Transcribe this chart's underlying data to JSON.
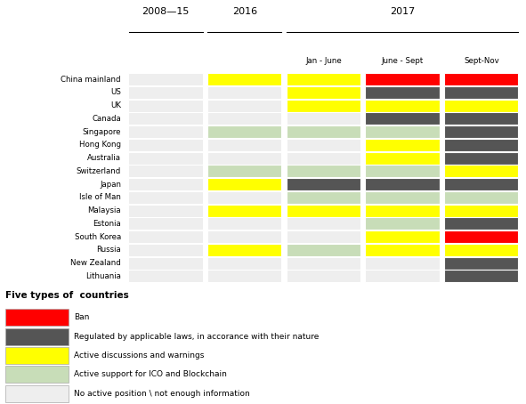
{
  "countries": [
    "China mainland",
    "US",
    "UK",
    "Canada",
    "Singapore",
    "Hong Kong",
    "Australia",
    "Switzerland",
    "Japan",
    "Isle of Man",
    "Malaysia",
    "Estonia",
    "South Korea",
    "Russia",
    "New Zealand",
    "Lithuania"
  ],
  "columns": [
    "2008-15",
    "2016",
    "Jan - June",
    "June - Sept",
    "Sept-Nov"
  ],
  "colors": {
    "none": "#eeeeee",
    "red": "#ff0000",
    "gray": "#555555",
    "yellow": "#ffff00",
    "green": "#c8ddb8"
  },
  "grid": [
    [
      "none",
      "yellow",
      "yellow",
      "red",
      "red"
    ],
    [
      "none",
      "none",
      "yellow",
      "gray",
      "gray"
    ],
    [
      "none",
      "none",
      "yellow",
      "yellow",
      "yellow"
    ],
    [
      "none",
      "none",
      "none",
      "gray",
      "gray"
    ],
    [
      "none",
      "green",
      "green",
      "green",
      "gray"
    ],
    [
      "none",
      "none",
      "none",
      "yellow",
      "gray"
    ],
    [
      "none",
      "none",
      "none",
      "yellow",
      "gray"
    ],
    [
      "none",
      "green",
      "green",
      "green",
      "yellow"
    ],
    [
      "none",
      "yellow",
      "gray",
      "gray",
      "gray"
    ],
    [
      "none",
      "none",
      "green",
      "green",
      "green"
    ],
    [
      "none",
      "yellow",
      "yellow",
      "yellow",
      "yellow"
    ],
    [
      "none",
      "none",
      "none",
      "green",
      "gray"
    ],
    [
      "none",
      "none",
      "none",
      "yellow",
      "red"
    ],
    [
      "none",
      "yellow",
      "green",
      "yellow",
      "yellow"
    ],
    [
      "none",
      "none",
      "none",
      "none",
      "gray"
    ],
    [
      "none",
      "none",
      "none",
      "none",
      "gray"
    ]
  ],
  "legend_items": [
    {
      "color": "#ff0000",
      "label": "Ban"
    },
    {
      "color": "#555555",
      "label": "Regulated by applicable laws, in accorance with their nature"
    },
    {
      "color": "#ffff00",
      "label": "Active discussions and warnings"
    },
    {
      "color": "#c8ddb8",
      "label": "Active support for ICO and Blockchain"
    },
    {
      "color": "#eeeeee",
      "label": "No active position \\ not enough information"
    }
  ],
  "legend_title": "Five types of  countries",
  "top_labels": [
    "2008—15",
    "2016",
    "2017"
  ],
  "sub_labels": [
    "Jan - June",
    "June - Sept",
    "Sept-Nov"
  ],
  "bg_color": "#ffffff"
}
